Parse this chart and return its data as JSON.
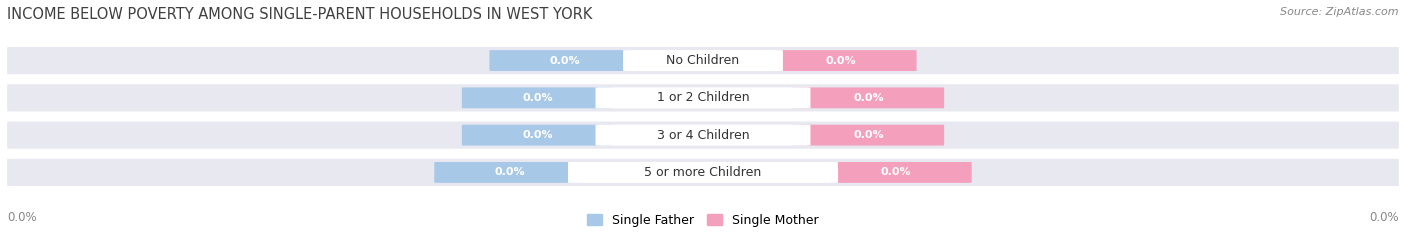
{
  "title": "INCOME BELOW POVERTY AMONG SINGLE-PARENT HOUSEHOLDS IN WEST YORK",
  "source": "Source: ZipAtlas.com",
  "categories": [
    "No Children",
    "1 or 2 Children",
    "3 or 4 Children",
    "5 or more Children"
  ],
  "single_father_values": [
    0.0,
    0.0,
    0.0,
    0.0
  ],
  "single_mother_values": [
    0.0,
    0.0,
    0.0,
    0.0
  ],
  "father_color": "#a8c8e8",
  "mother_color": "#f4a0bc",
  "bar_bg_color": "#e8e8f0",
  "background_color": "#ffffff",
  "axis_label_left": "0.0%",
  "axis_label_right": "0.0%",
  "title_fontsize": 10.5,
  "source_fontsize": 8,
  "legend_fontsize": 9,
  "value_fontsize": 8,
  "category_fontsize": 9
}
